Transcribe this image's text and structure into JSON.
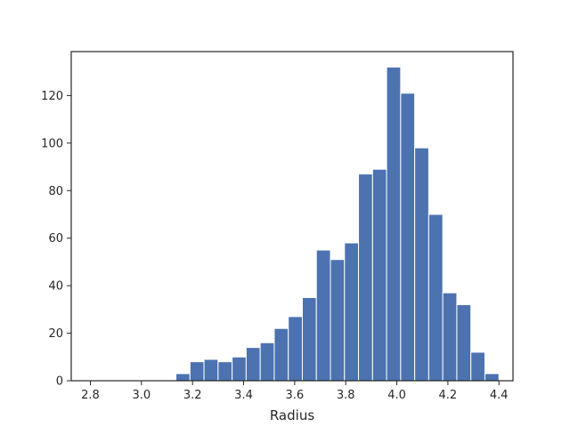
{
  "chart_data": {
    "type": "bar",
    "title": "",
    "xlabel": "Radius",
    "ylabel": "",
    "bar_color": "#4c72b0",
    "edge_color": "#ffffff",
    "xlim": [
      2.725,
      4.455
    ],
    "ylim": [
      0,
      138.5
    ],
    "x_ticks": [
      2.8,
      3.0,
      3.2,
      3.4,
      3.6,
      3.8,
      4.0,
      4.2,
      4.4
    ],
    "x_tick_labels": [
      "2.8",
      "3.0",
      "3.2",
      "3.4",
      "3.6",
      "3.8",
      "4.0",
      "4.2",
      "4.4"
    ],
    "y_ticks": [
      0,
      20,
      40,
      60,
      80,
      100,
      120
    ],
    "y_tick_labels": [
      "0",
      "20",
      "40",
      "60",
      "80",
      "100",
      "120"
    ],
    "bins": [
      {
        "x0": 2.805,
        "x1": 2.86,
        "count": 0
      },
      {
        "x0": 2.86,
        "x1": 2.915,
        "count": 0
      },
      {
        "x0": 2.915,
        "x1": 2.97,
        "count": 0
      },
      {
        "x0": 2.97,
        "x1": 3.025,
        "count": 0
      },
      {
        "x0": 3.025,
        "x1": 3.08,
        "count": 0
      },
      {
        "x0": 3.08,
        "x1": 3.135,
        "count": 0
      },
      {
        "x0": 3.135,
        "x1": 3.19,
        "count": 3
      },
      {
        "x0": 3.19,
        "x1": 3.245,
        "count": 8
      },
      {
        "x0": 3.245,
        "x1": 3.3,
        "count": 9
      },
      {
        "x0": 3.3,
        "x1": 3.355,
        "count": 8
      },
      {
        "x0": 3.355,
        "x1": 3.41,
        "count": 10
      },
      {
        "x0": 3.41,
        "x1": 3.465,
        "count": 14
      },
      {
        "x0": 3.465,
        "x1": 3.52,
        "count": 16
      },
      {
        "x0": 3.52,
        "x1": 3.575,
        "count": 22
      },
      {
        "x0": 3.575,
        "x1": 3.63,
        "count": 27
      },
      {
        "x0": 3.63,
        "x1": 3.685,
        "count": 35
      },
      {
        "x0": 3.685,
        "x1": 3.74,
        "count": 55
      },
      {
        "x0": 3.74,
        "x1": 3.795,
        "count": 51
      },
      {
        "x0": 3.795,
        "x1": 3.85,
        "count": 58
      },
      {
        "x0": 3.85,
        "x1": 3.905,
        "count": 87
      },
      {
        "x0": 3.905,
        "x1": 3.96,
        "count": 89
      },
      {
        "x0": 3.96,
        "x1": 4.015,
        "count": 132
      },
      {
        "x0": 4.015,
        "x1": 4.07,
        "count": 121
      },
      {
        "x0": 4.07,
        "x1": 4.125,
        "count": 98
      },
      {
        "x0": 4.125,
        "x1": 4.18,
        "count": 70
      },
      {
        "x0": 4.18,
        "x1": 4.235,
        "count": 37
      },
      {
        "x0": 4.235,
        "x1": 4.29,
        "count": 32
      },
      {
        "x0": 4.29,
        "x1": 4.345,
        "count": 12
      },
      {
        "x0": 4.345,
        "x1": 4.4,
        "count": 3
      }
    ],
    "grid": false,
    "legend": "none"
  }
}
